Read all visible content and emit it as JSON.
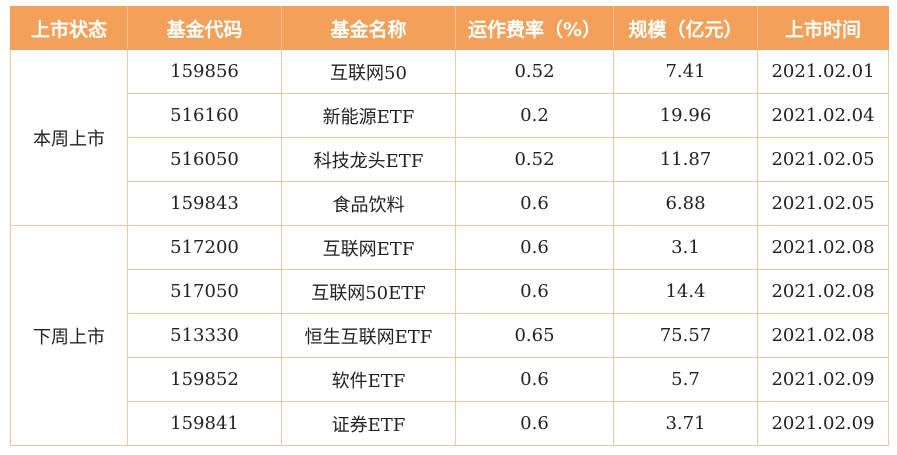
{
  "table": {
    "headers": [
      "上市状态",
      "基金代码",
      "基金名称",
      "运作费率（%）",
      "规模（亿元）",
      "上市时间"
    ],
    "groups": [
      {
        "label": "本周上市",
        "rows": [
          [
            "159856",
            "互联网50",
            "0.52",
            "7.41",
            "2021.02.01"
          ],
          [
            "516160",
            "新能源ETF",
            "0.2",
            "19.96",
            "2021.02.04"
          ],
          [
            "516050",
            "科技龙头ETF",
            "0.52",
            "11.87",
            "2021.02.05"
          ],
          [
            "159843",
            "食品饮料",
            "0.6",
            "6.88",
            "2021.02.05"
          ]
        ]
      },
      {
        "label": "下周上市",
        "rows": [
          [
            "517200",
            "互联网ETF",
            "0.6",
            "3.1",
            "2021.02.08"
          ],
          [
            "517050",
            "互联网50ETF",
            "0.6",
            "14.4",
            "2021.02.08"
          ],
          [
            "513330",
            "恒生互联网ETF",
            "0.65",
            "75.57",
            "2021.02.08"
          ],
          [
            "159852",
            "软件ETF",
            "0.6",
            "5.7",
            "2021.02.09"
          ],
          [
            "159841",
            "证券ETF",
            "0.6",
            "3.71",
            "2021.02.09"
          ]
        ]
      }
    ]
  },
  "colors": {
    "header_bg": "#f3a15a",
    "header_text": "#ffffff",
    "border": "#f2c7a4"
  }
}
